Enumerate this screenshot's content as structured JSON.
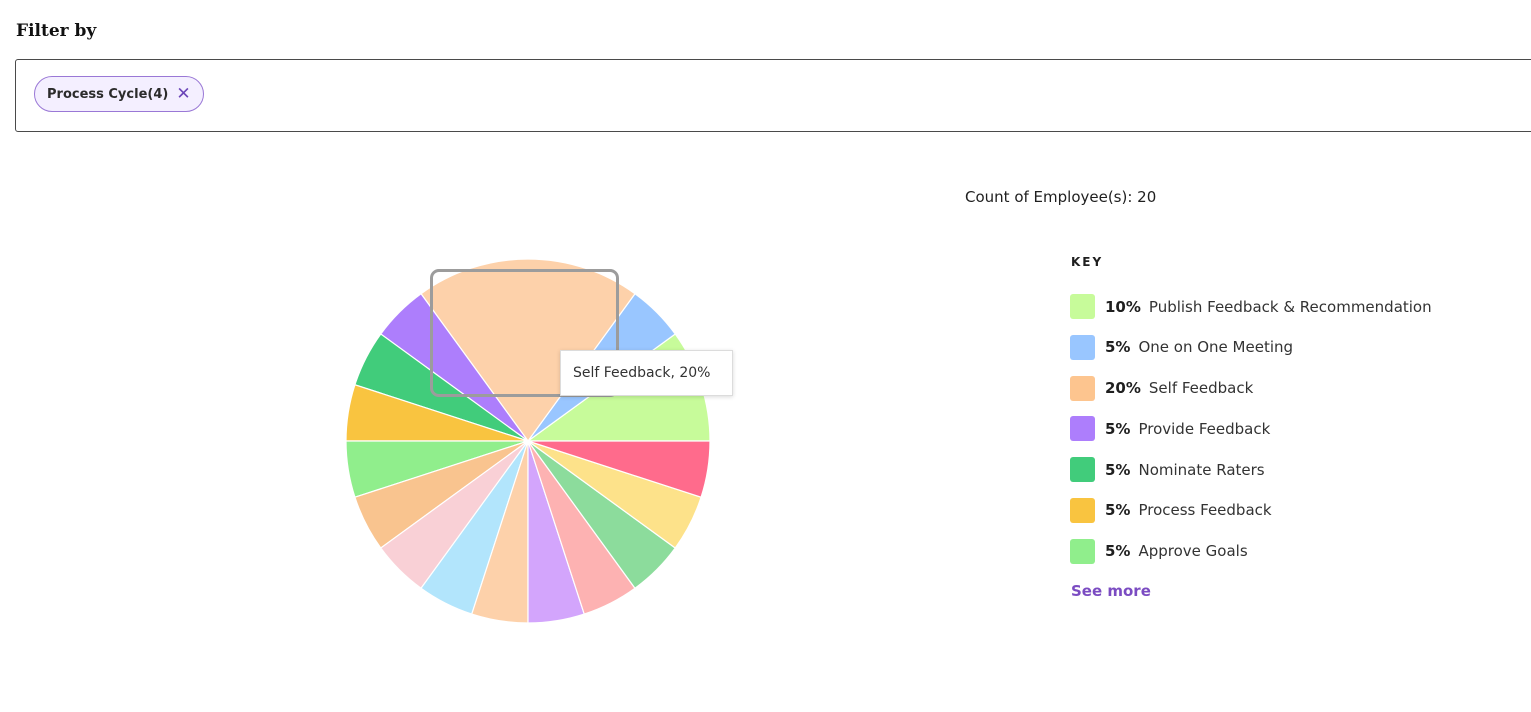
{
  "filter": {
    "title": "Filter by",
    "chip_label": "Process Cycle(4)",
    "chip_close_icon": "close-icon",
    "chip_close_glyph": "✕"
  },
  "summary": {
    "count_text": "Count of Employee(s): 20"
  },
  "legend": {
    "title": "KEY",
    "items": [
      {
        "pct": "10%",
        "label": "Publish Feedback & Recommendation",
        "color": "#c7fb9a"
      },
      {
        "pct": "5%",
        "label": "One on One Meeting",
        "color": "#99c6ff"
      },
      {
        "pct": "20%",
        "label": "Self Feedback",
        "color": "#fdc58f"
      },
      {
        "pct": "5%",
        "label": "Provide Feedback",
        "color": "#ad7efc"
      },
      {
        "pct": "5%",
        "label": "Nominate Raters",
        "color": "#41cc7b"
      },
      {
        "pct": "5%",
        "label": "Process Feedback",
        "color": "#f9c440"
      },
      {
        "pct": "5%",
        "label": "Approve Goals",
        "color": "#90ee8c"
      }
    ],
    "see_more": "See more"
  },
  "tooltip": {
    "text": "Self Feedback, 20%"
  },
  "chart_data": {
    "type": "pie",
    "values": [
      10,
      5,
      20,
      5,
      5,
      5,
      5,
      5,
      5,
      5,
      5,
      5,
      5,
      5,
      5
    ],
    "colors": [
      "#c7fb9a",
      "#99c6ff",
      "#fdd1aa",
      "#ad7efc",
      "#41cc7b",
      "#f9c440",
      "#90ee8c",
      "#f9c48f",
      "#f9d0d6",
      "#b2e5fc",
      "#fdd1aa",
      "#d3a5fc",
      "#fdb2b2",
      "#8cdc9c",
      "#fde28a",
      "#ff6b8c"
    ],
    "start_direction": "east",
    "direction": "counterclockwise",
    "extra_slice": {
      "value": 5,
      "color": "#ff6b8c"
    }
  }
}
